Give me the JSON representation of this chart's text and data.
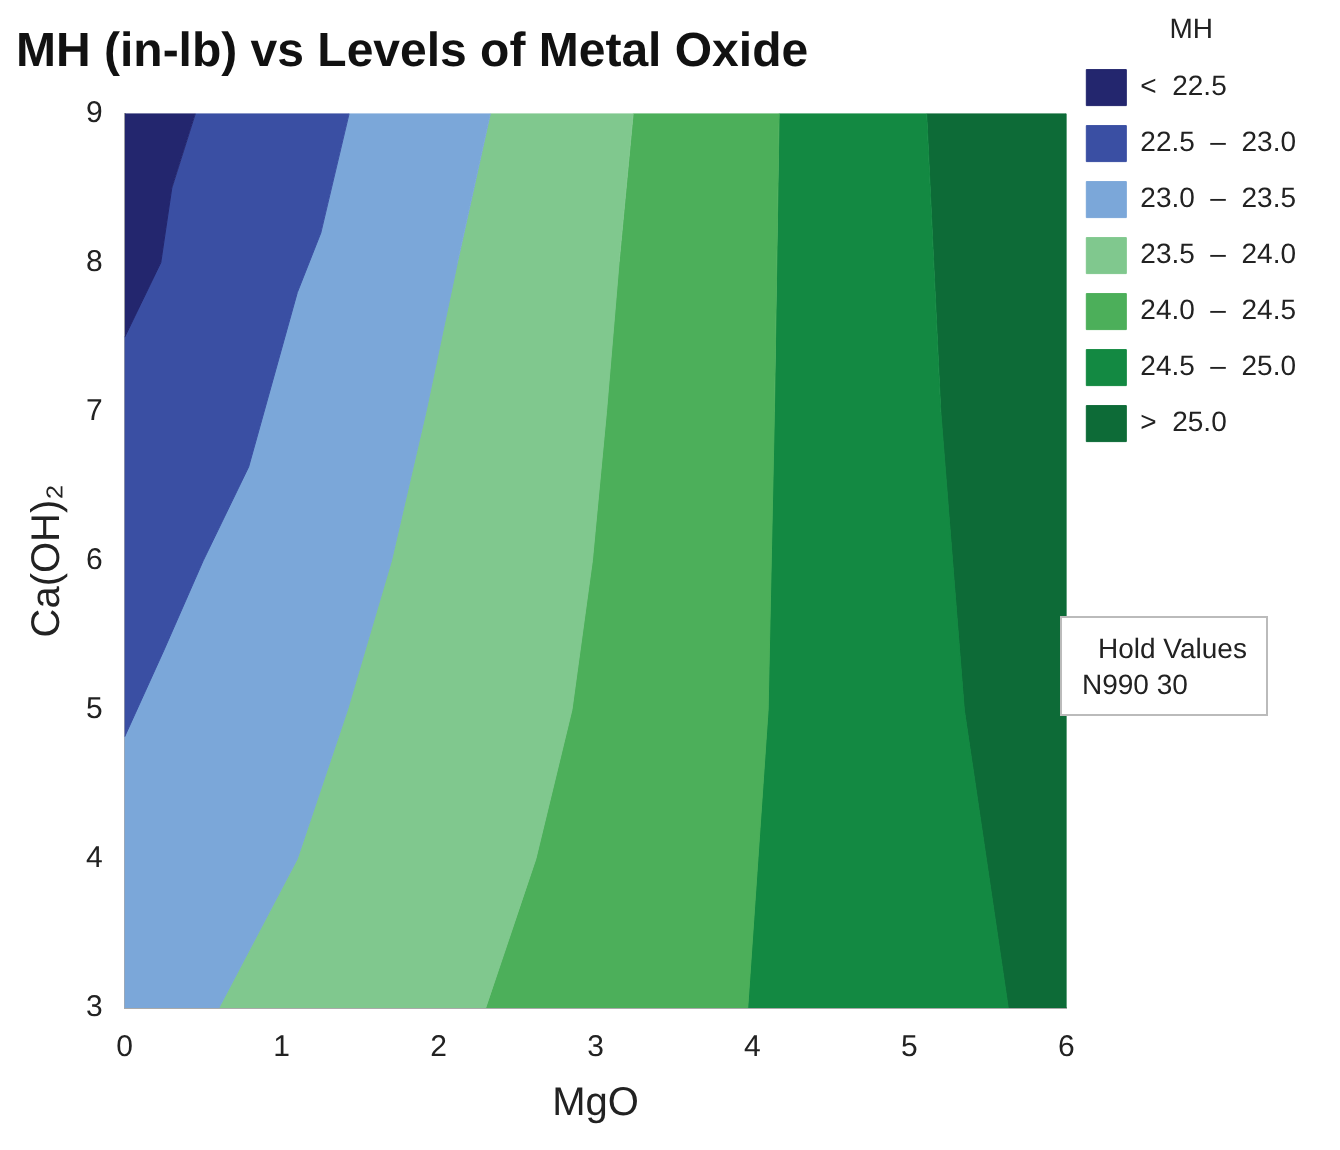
{
  "chart_data": {
    "type": "area",
    "title": "MH (in-lb) vs Levels of Metal Oxide",
    "xlabel": "MgO",
    "ylabel": "Ca(OH)₂",
    "legend_title": "MH",
    "legend": "right",
    "annotations": [
      "Hold Values",
      "N990  30"
    ],
    "xlim": [
      0,
      6
    ],
    "ylim": [
      3,
      9
    ],
    "xticks": [
      0,
      1,
      2,
      3,
      4,
      5,
      6
    ],
    "yticks": [
      3,
      4,
      5,
      6,
      7,
      8,
      9
    ],
    "series": [
      {
        "name": "<  22.5",
        "color": "#23266e",
        "x": [
          0,
          0.45,
          0.3,
          0.23,
          0
        ],
        "values": [
          9,
          9,
          8.5,
          8,
          7.5
        ]
      },
      {
        "name": "22.5  –  23.0",
        "color": "#3a4fa3",
        "x": [
          0.45,
          1.43,
          1.25,
          1.1,
          0.79,
          0.5,
          0.25,
          0,
          0,
          0.23,
          0.3
        ],
        "values": [
          9,
          9,
          8.2,
          7.8,
          6.63,
          6,
          5.4,
          4.82,
          7.5,
          8,
          8.5
        ]
      },
      {
        "name": "23.0  –  23.5",
        "color": "#7ba7d9",
        "x": [
          1.43,
          2.33,
          2.12,
          1.92,
          1.7,
          1.42,
          1.1,
          0.6,
          0,
          0,
          0.25,
          0.5,
          0.79,
          1.1,
          1.25
        ],
        "values": [
          9,
          9,
          8,
          7,
          6,
          5,
          4,
          3,
          3,
          4.82,
          5.4,
          6,
          6.63,
          7.8,
          8.2
        ]
      },
      {
        "name": "23.5  –  24.0",
        "color": "#80c88e",
        "x": [
          2.33,
          3.24,
          3.15,
          3.07,
          2.98,
          2.85,
          2.62,
          2.3,
          0.6,
          1.1,
          1.42,
          1.7,
          1.92,
          2.12
        ],
        "values": [
          9,
          9,
          8,
          7,
          6,
          5,
          4,
          3,
          3,
          4,
          5,
          6,
          7,
          8
        ]
      },
      {
        "name": "24.0  –  24.5",
        "color": "#4caf5a",
        "x": [
          3.24,
          4.17,
          4.14,
          4.1,
          3.97,
          2.3,
          2.62,
          2.85,
          2.98,
          3.07,
          3.15
        ],
        "values": [
          9,
          9,
          7,
          5,
          3,
          3,
          4,
          5,
          6,
          7,
          8
        ]
      },
      {
        "name": "24.5  –  25.0",
        "color": "#138942",
        "x": [
          4.17,
          5.11,
          5.2,
          5.35,
          5.63,
          3.97,
          4.1,
          4.14
        ],
        "values": [
          9,
          9,
          7,
          5,
          3,
          3,
          5,
          7
        ]
      },
      {
        "name": ">  25.0",
        "color": "#0d6b37",
        "x": [
          5.11,
          6,
          6,
          5.63,
          5.35,
          5.2
        ],
        "values": [
          9,
          9,
          3,
          3,
          5,
          7
        ]
      }
    ]
  }
}
